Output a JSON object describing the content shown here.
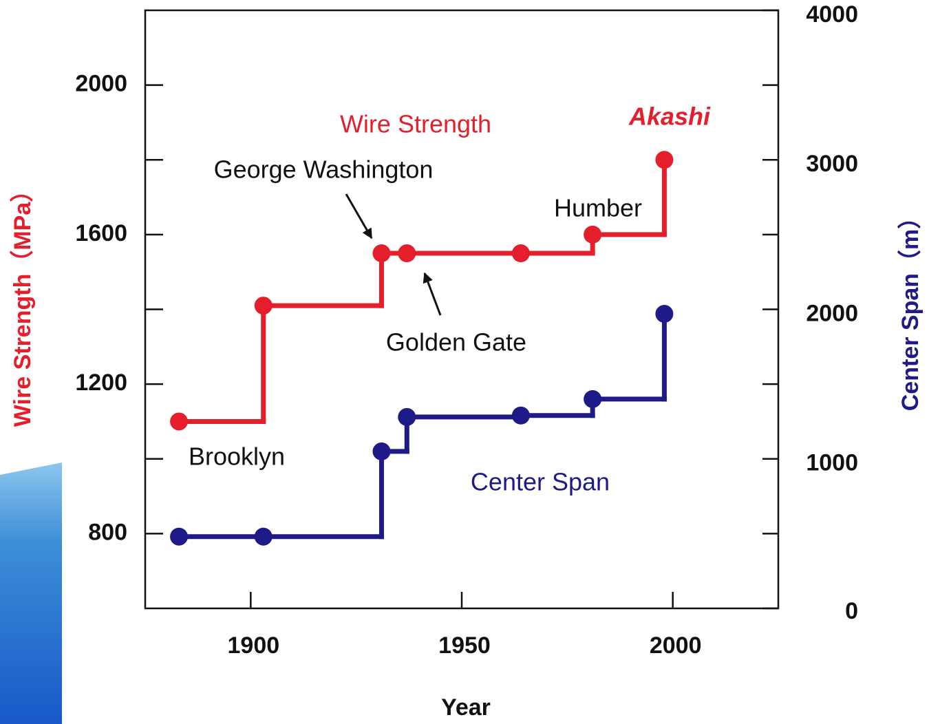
{
  "chart_data": {
    "type": "line",
    "step": "post",
    "x": [
      1883,
      1903,
      1931,
      1937,
      1964,
      1981,
      1998
    ],
    "xlim": [
      1875,
      2025
    ],
    "xticks": [
      1900,
      1950,
      2000
    ],
    "xlabel": "Year",
    "ylabel": "Wire Strength（MPa）",
    "y2label": "Center Span（m）",
    "ylim": [
      600,
      2200
    ],
    "yticks": [
      800,
      1200,
      1600,
      2000
    ],
    "yticks_minor": [
      1000,
      1400,
      1800
    ],
    "y2lim": [
      0,
      4000
    ],
    "y2ticks": [
      0,
      1000,
      2000,
      3000,
      4000
    ],
    "y2ticks_minor": [
      500,
      1500,
      2500,
      3500
    ],
    "series": [
      {
        "name": "Wire Strength",
        "color": "#e41e2b",
        "values": [
          1100,
          1410,
          1550,
          1550,
          1550,
          1600,
          1800
        ]
      },
      {
        "name": "Center Span",
        "color": "#1e1a88",
        "axis": "y2",
        "values": [
          480,
          480,
          1050,
          1280,
          1290,
          1400,
          1970
        ]
      }
    ],
    "annotations": [
      {
        "text": "Akashi",
        "color": "#e41e2b"
      },
      {
        "text": "George Washington",
        "color": "#111111"
      },
      {
        "text": "Humber",
        "color": "#111111"
      },
      {
        "text": "Golden Gate",
        "color": "#111111"
      },
      {
        "text": "Brooklyn",
        "color": "#111111"
      }
    ]
  }
}
